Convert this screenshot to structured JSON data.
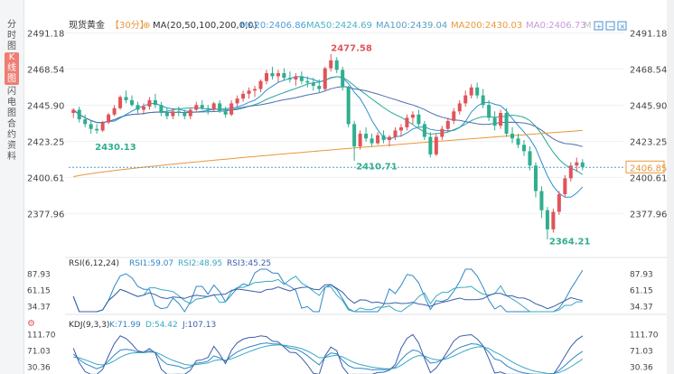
{
  "sidebar": {
    "tabs": [
      {
        "label": "分时图",
        "active": false
      },
      {
        "label": "K线图",
        "active": true
      },
      {
        "label": "闪电图",
        "active": false
      },
      {
        "label": "合约资料",
        "active": false
      }
    ]
  },
  "header": {
    "instrument": "现货黄金",
    "period": "【30分】",
    "ma_params": "MA(20,50,100,200,0,0)",
    "ma_values": [
      {
        "label": "MA20:2406.86",
        "color": "#4a9fd8"
      },
      {
        "label": "MA50:2424.69",
        "color": "#4ab3c7"
      },
      {
        "label": "MA100:2439.04",
        "color": "#5aa0c8"
      },
      {
        "label": "MA200:2430.03",
        "color": "#e89a3c"
      },
      {
        "label": "MA0:2406.73",
        "color": "#c89ad8"
      },
      {
        "label": "M",
        "color": "#bbbbbb"
      }
    ]
  },
  "colors": {
    "up": "#e0545a",
    "down": "#2fae8e",
    "ma20": "#2f8fd0",
    "ma50": "#2aa79b",
    "ma100": "#4d6fb0",
    "ma200": "#e8973a",
    "rsi1": "#2f86c8",
    "rsi2": "#37a9c2",
    "rsi3": "#3b5ea8"
  },
  "price_axis": {
    "ticks": [
      "2491.18",
      "2468.54",
      "2445.90",
      "2423.25",
      "2400.61",
      "2377.96"
    ],
    "current": "2406.85"
  },
  "annotations": {
    "high": "2477.58",
    "low": "2364.21",
    "mark_a": "2430.13",
    "mark_b": "2410.71"
  },
  "rsi": {
    "title": "RSI(6,12,24)",
    "values": [
      "RSI1:59.07",
      "RSI2:48.95",
      "RSI3:45.25"
    ],
    "ticks": [
      "87.93",
      "61.15",
      "34.37"
    ]
  },
  "kdj": {
    "title": "KDJ(9,3,3)",
    "values": [
      "K:71.99",
      "D:54.42",
      "J:107.13"
    ],
    "ticks": [
      "111.70",
      "71.03",
      "30.36"
    ]
  },
  "chart_data": {
    "type": "candlestick",
    "ylim": [
      2360,
      2492
    ],
    "candles": [
      [
        2441,
        2444,
        2438,
        2443
      ],
      [
        2443,
        2445,
        2435,
        2437
      ],
      [
        2437,
        2440,
        2432,
        2434
      ],
      [
        2434,
        2436,
        2428,
        2431
      ],
      [
        2431,
        2434,
        2428,
        2430
      ],
      [
        2430,
        2436,
        2429,
        2435
      ],
      [
        2435,
        2441,
        2434,
        2440
      ],
      [
        2440,
        2446,
        2439,
        2444
      ],
      [
        2444,
        2452,
        2443,
        2451
      ],
      [
        2451,
        2455,
        2447,
        2449
      ],
      [
        2449,
        2452,
        2445,
        2446
      ],
      [
        2446,
        2448,
        2441,
        2443
      ],
      [
        2443,
        2447,
        2440,
        2445
      ],
      [
        2445,
        2451,
        2443,
        2449
      ],
      [
        2449,
        2453,
        2444,
        2446
      ],
      [
        2446,
        2448,
        2439,
        2441
      ],
      [
        2441,
        2444,
        2437,
        2439
      ],
      [
        2439,
        2444,
        2437,
        2442
      ],
      [
        2442,
        2445,
        2439,
        2441
      ],
      [
        2441,
        2443,
        2437,
        2439
      ],
      [
        2439,
        2444,
        2437,
        2443
      ],
      [
        2443,
        2448,
        2442,
        2446
      ],
      [
        2446,
        2449,
        2443,
        2444
      ],
      [
        2444,
        2446,
        2440,
        2443
      ],
      [
        2443,
        2448,
        2442,
        2447
      ],
      [
        2447,
        2449,
        2441,
        2442
      ],
      [
        2442,
        2445,
        2438,
        2440
      ],
      [
        2440,
        2449,
        2439,
        2447
      ],
      [
        2447,
        2452,
        2445,
        2450
      ],
      [
        2450,
        2455,
        2448,
        2453
      ],
      [
        2453,
        2457,
        2450,
        2455
      ],
      [
        2455,
        2458,
        2451,
        2456
      ],
      [
        2456,
        2462,
        2454,
        2461
      ],
      [
        2461,
        2468,
        2459,
        2466
      ],
      [
        2466,
        2470,
        2462,
        2464
      ],
      [
        2464,
        2468,
        2460,
        2466
      ],
      [
        2466,
        2469,
        2461,
        2463
      ],
      [
        2463,
        2467,
        2460,
        2462
      ],
      [
        2462,
        2466,
        2458,
        2464
      ],
      [
        2464,
        2467,
        2459,
        2461
      ],
      [
        2461,
        2464,
        2457,
        2460
      ],
      [
        2460,
        2463,
        2455,
        2458
      ],
      [
        2458,
        2462,
        2454,
        2456
      ],
      [
        2456,
        2470,
        2455,
        2469
      ],
      [
        2469,
        2478,
        2467,
        2474
      ],
      [
        2474,
        2476,
        2466,
        2468
      ],
      [
        2468,
        2470,
        2455,
        2457
      ],
      [
        2457,
        2458,
        2432,
        2434
      ],
      [
        2434,
        2436,
        2411,
        2420
      ],
      [
        2420,
        2430,
        2418,
        2428
      ],
      [
        2428,
        2432,
        2423,
        2425
      ],
      [
        2425,
        2428,
        2420,
        2422
      ],
      [
        2422,
        2429,
        2421,
        2427
      ],
      [
        2427,
        2430,
        2422,
        2424
      ],
      [
        2424,
        2427,
        2420,
        2426
      ],
      [
        2426,
        2432,
        2424,
        2430
      ],
      [
        2430,
        2434,
        2426,
        2432
      ],
      [
        2432,
        2440,
        2430,
        2438
      ],
      [
        2438,
        2442,
        2434,
        2440
      ],
      [
        2440,
        2443,
        2432,
        2434
      ],
      [
        2434,
        2436,
        2424,
        2426
      ],
      [
        2426,
        2429,
        2413,
        2415
      ],
      [
        2415,
        2428,
        2414,
        2426
      ],
      [
        2426,
        2433,
        2424,
        2431
      ],
      [
        2431,
        2438,
        2429,
        2436
      ],
      [
        2436,
        2444,
        2434,
        2442
      ],
      [
        2442,
        2449,
        2440,
        2447
      ],
      [
        2447,
        2455,
        2445,
        2452
      ],
      [
        2452,
        2459,
        2450,
        2457
      ],
      [
        2457,
        2460,
        2450,
        2452
      ],
      [
        2452,
        2456,
        2444,
        2446
      ],
      [
        2446,
        2449,
        2436,
        2438
      ],
      [
        2438,
        2442,
        2430,
        2433
      ],
      [
        2433,
        2443,
        2431,
        2441
      ],
      [
        2441,
        2444,
        2426,
        2428
      ],
      [
        2428,
        2432,
        2422,
        2425
      ],
      [
        2425,
        2428,
        2419,
        2421
      ],
      [
        2421,
        2424,
        2414,
        2417
      ],
      [
        2417,
        2420,
        2405,
        2408
      ],
      [
        2408,
        2410,
        2388,
        2392
      ],
      [
        2392,
        2395,
        2375,
        2380
      ],
      [
        2380,
        2382,
        2364,
        2368
      ],
      [
        2368,
        2381,
        2366,
        2379
      ],
      [
        2379,
        2392,
        2377,
        2390
      ],
      [
        2390,
        2402,
        2388,
        2400
      ],
      [
        2400,
        2410,
        2398,
        2408
      ],
      [
        2408,
        2413,
        2404,
        2410
      ],
      [
        2410,
        2412,
        2405,
        2407
      ]
    ]
  }
}
